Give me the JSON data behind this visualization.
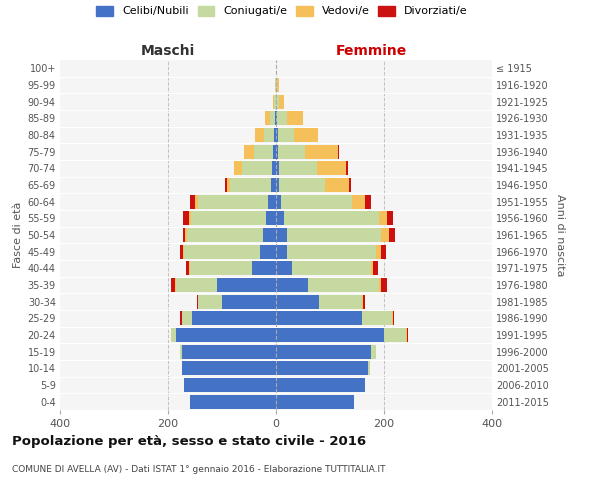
{
  "age_groups": [
    "0-4",
    "5-9",
    "10-14",
    "15-19",
    "20-24",
    "25-29",
    "30-34",
    "35-39",
    "40-44",
    "45-49",
    "50-54",
    "55-59",
    "60-64",
    "65-69",
    "70-74",
    "75-79",
    "80-84",
    "85-89",
    "90-94",
    "95-99",
    "100+"
  ],
  "birth_years": [
    "2011-2015",
    "2006-2010",
    "2001-2005",
    "1996-2000",
    "1991-1995",
    "1986-1990",
    "1981-1985",
    "1976-1980",
    "1971-1975",
    "1966-1970",
    "1961-1965",
    "1956-1960",
    "1951-1955",
    "1946-1950",
    "1941-1945",
    "1936-1940",
    "1931-1935",
    "1926-1930",
    "1921-1925",
    "1916-1920",
    "≤ 1915"
  ],
  "male": {
    "celibi": [
      160,
      170,
      175,
      175,
      185,
      155,
      100,
      110,
      45,
      30,
      25,
      18,
      15,
      10,
      8,
      5,
      3,
      2,
      0,
      0,
      0
    ],
    "coniugati": [
      0,
      0,
      0,
      2,
      10,
      20,
      45,
      75,
      115,
      140,
      140,
      140,
      130,
      75,
      55,
      35,
      20,
      10,
      3,
      1,
      0
    ],
    "vedovi": [
      0,
      0,
      0,
      0,
      0,
      0,
      0,
      2,
      2,
      2,
      3,
      3,
      5,
      5,
      15,
      20,
      15,
      8,
      3,
      1,
      0
    ],
    "divorziati": [
      0,
      0,
      0,
      0,
      0,
      3,
      2,
      8,
      5,
      5,
      5,
      12,
      10,
      5,
      0,
      0,
      0,
      0,
      0,
      0,
      0
    ]
  },
  "female": {
    "nubili": [
      145,
      165,
      170,
      175,
      200,
      160,
      80,
      60,
      30,
      20,
      20,
      15,
      10,
      5,
      5,
      4,
      3,
      2,
      0,
      0,
      0
    ],
    "coniugate": [
      0,
      0,
      5,
      10,
      40,
      55,
      80,
      130,
      145,
      165,
      175,
      175,
      130,
      85,
      70,
      50,
      30,
      18,
      5,
      2,
      0
    ],
    "vedove": [
      0,
      0,
      0,
      0,
      2,
      2,
      2,
      5,
      5,
      10,
      15,
      15,
      25,
      45,
      55,
      60,
      45,
      30,
      10,
      3,
      0
    ],
    "divorziate": [
      0,
      0,
      0,
      0,
      2,
      2,
      3,
      10,
      8,
      8,
      10,
      12,
      10,
      3,
      3,
      3,
      0,
      0,
      0,
      0,
      0
    ]
  },
  "colors": {
    "celibi": "#4472c4",
    "coniugati": "#c5d9a0",
    "vedovi": "#f5c05a",
    "divorziati": "#cc1111"
  },
  "title": "Popolazione per età, sesso e stato civile - 2016",
  "subtitle": "COMUNE DI AVELLA (AV) - Dati ISTAT 1° gennaio 2016 - Elaborazione TUTTITALIA.IT",
  "xlabel_left": "Maschi",
  "xlabel_right": "Femmine",
  "ylabel_left": "Fasce di età",
  "ylabel_right": "Anni di nascita",
  "xlim": 400,
  "legend_labels": [
    "Celibi/Nubili",
    "Coniugati/e",
    "Vedovi/e",
    "Divorziati/e"
  ],
  "bg_color": "#ffffff",
  "plot_bg_color": "#f5f5f5",
  "grid_color": "#bbbbbb"
}
